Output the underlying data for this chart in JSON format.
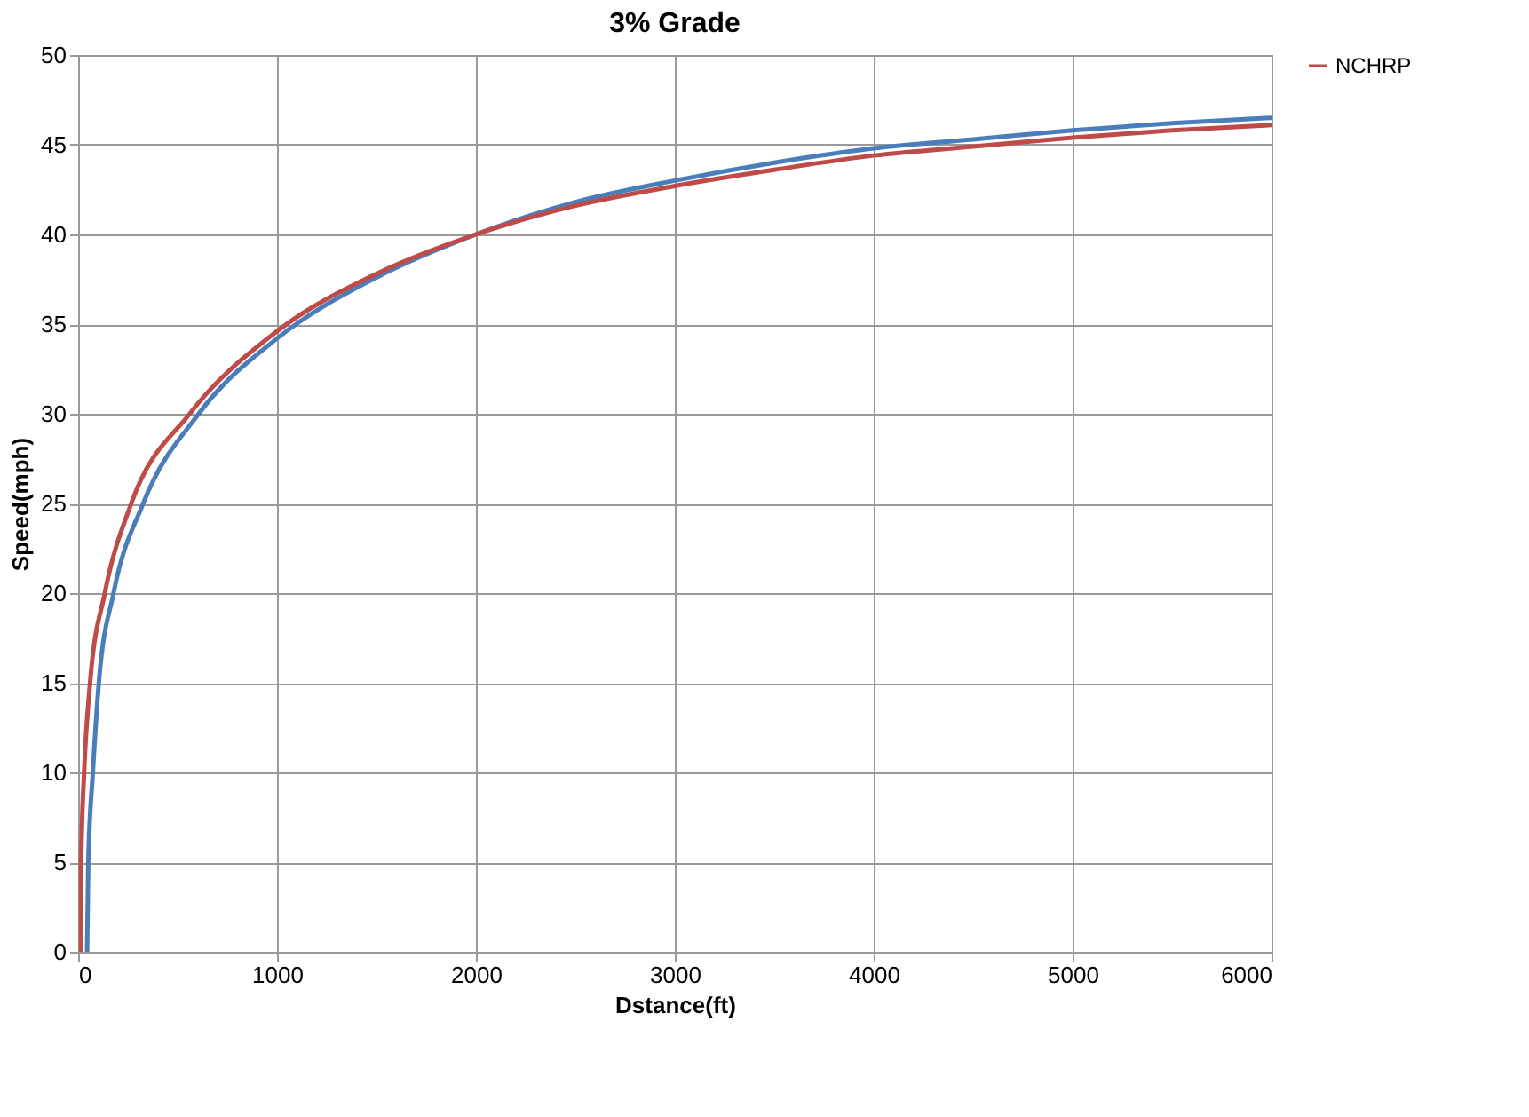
{
  "chart_data": {
    "type": "line",
    "title": "3% Grade",
    "xlabel": "Dstance(ft)",
    "ylabel": "Speed(mph)",
    "xlim": [
      0,
      6000
    ],
    "xticks": [
      0,
      1000,
      2000,
      3000,
      4000,
      5000,
      6000
    ],
    "ylim": [
      0,
      50
    ],
    "yticks": [
      0,
      5,
      10,
      15,
      20,
      25,
      30,
      35,
      40,
      45,
      50
    ],
    "grid": true,
    "legend": "right",
    "marker": "none",
    "line_style": "solid",
    "series": [
      {
        "color": "#4a7ebb",
        "x": [
          45,
          51,
          74,
          104,
          178,
          327,
          606,
          1000,
          1500,
          2000,
          2500,
          3000,
          3500,
          4000,
          4500,
          5000,
          5500,
          6000
        ],
        "values": [
          0,
          5,
          10,
          15,
          20,
          25,
          30,
          34.2,
          37.6,
          40,
          41.8,
          43,
          44,
          44.8,
          45.3,
          45.8,
          46.2,
          46.5
        ]
      },
      {
        "name": "NCHRP",
        "color": "#be4b48",
        "x": [
          15,
          15,
          30,
          60,
          134,
          267,
          561,
          1000,
          1500,
          2000,
          2500,
          3000,
          3500,
          4000,
          4500,
          5000,
          5500,
          6000
        ],
        "values": [
          0,
          5,
          10,
          15,
          20,
          25,
          30,
          34.6,
          37.8,
          40,
          41.6,
          42.7,
          43.6,
          44.4,
          44.9,
          45.4,
          45.8,
          46.1
        ]
      }
    ]
  }
}
